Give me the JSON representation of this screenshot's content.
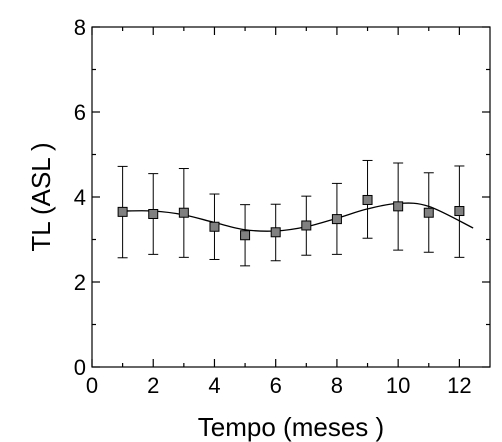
{
  "chart_data": {
    "type": "scatter",
    "title": "",
    "xlabel": "Tempo    (meses )",
    "ylabel": "TL    (ASL )",
    "xlim": [
      0,
      13
    ],
    "ylim": [
      0,
      8
    ],
    "x_ticks": [
      "0",
      "2",
      "4",
      "6",
      "8",
      "10",
      "12"
    ],
    "y_ticks": [
      "0",
      "2",
      "4",
      "6",
      "8"
    ],
    "grid": false,
    "legend": "none",
    "colors": {
      "marker": "#808080",
      "marker_edge": "#000000",
      "line": "#000000"
    },
    "series": [
      {
        "x": [
          1,
          2,
          3,
          4,
          5,
          6,
          7,
          8,
          9,
          10,
          11,
          12
        ],
        "y": [
          3.65,
          3.6,
          3.63,
          3.3,
          3.1,
          3.17,
          3.33,
          3.48,
          3.93,
          3.78,
          3.63,
          3.67
        ],
        "y_err_upper": [
          4.72,
          4.55,
          4.67,
          4.07,
          3.82,
          3.83,
          4.02,
          4.32,
          4.86,
          4.8,
          4.57,
          4.73
        ],
        "y_err_lower": [
          2.57,
          2.65,
          2.58,
          2.53,
          2.38,
          2.5,
          2.63,
          2.65,
          3.03,
          2.75,
          2.7,
          2.58
        ]
      }
    ],
    "fit_curve": {
      "x": [
        1,
        2,
        3,
        4,
        5,
        6,
        7,
        8,
        9,
        10,
        11,
        12.45
      ],
      "y": [
        3.67,
        3.67,
        3.58,
        3.4,
        3.23,
        3.2,
        3.3,
        3.5,
        3.72,
        3.85,
        3.78,
        3.27
      ]
    }
  }
}
